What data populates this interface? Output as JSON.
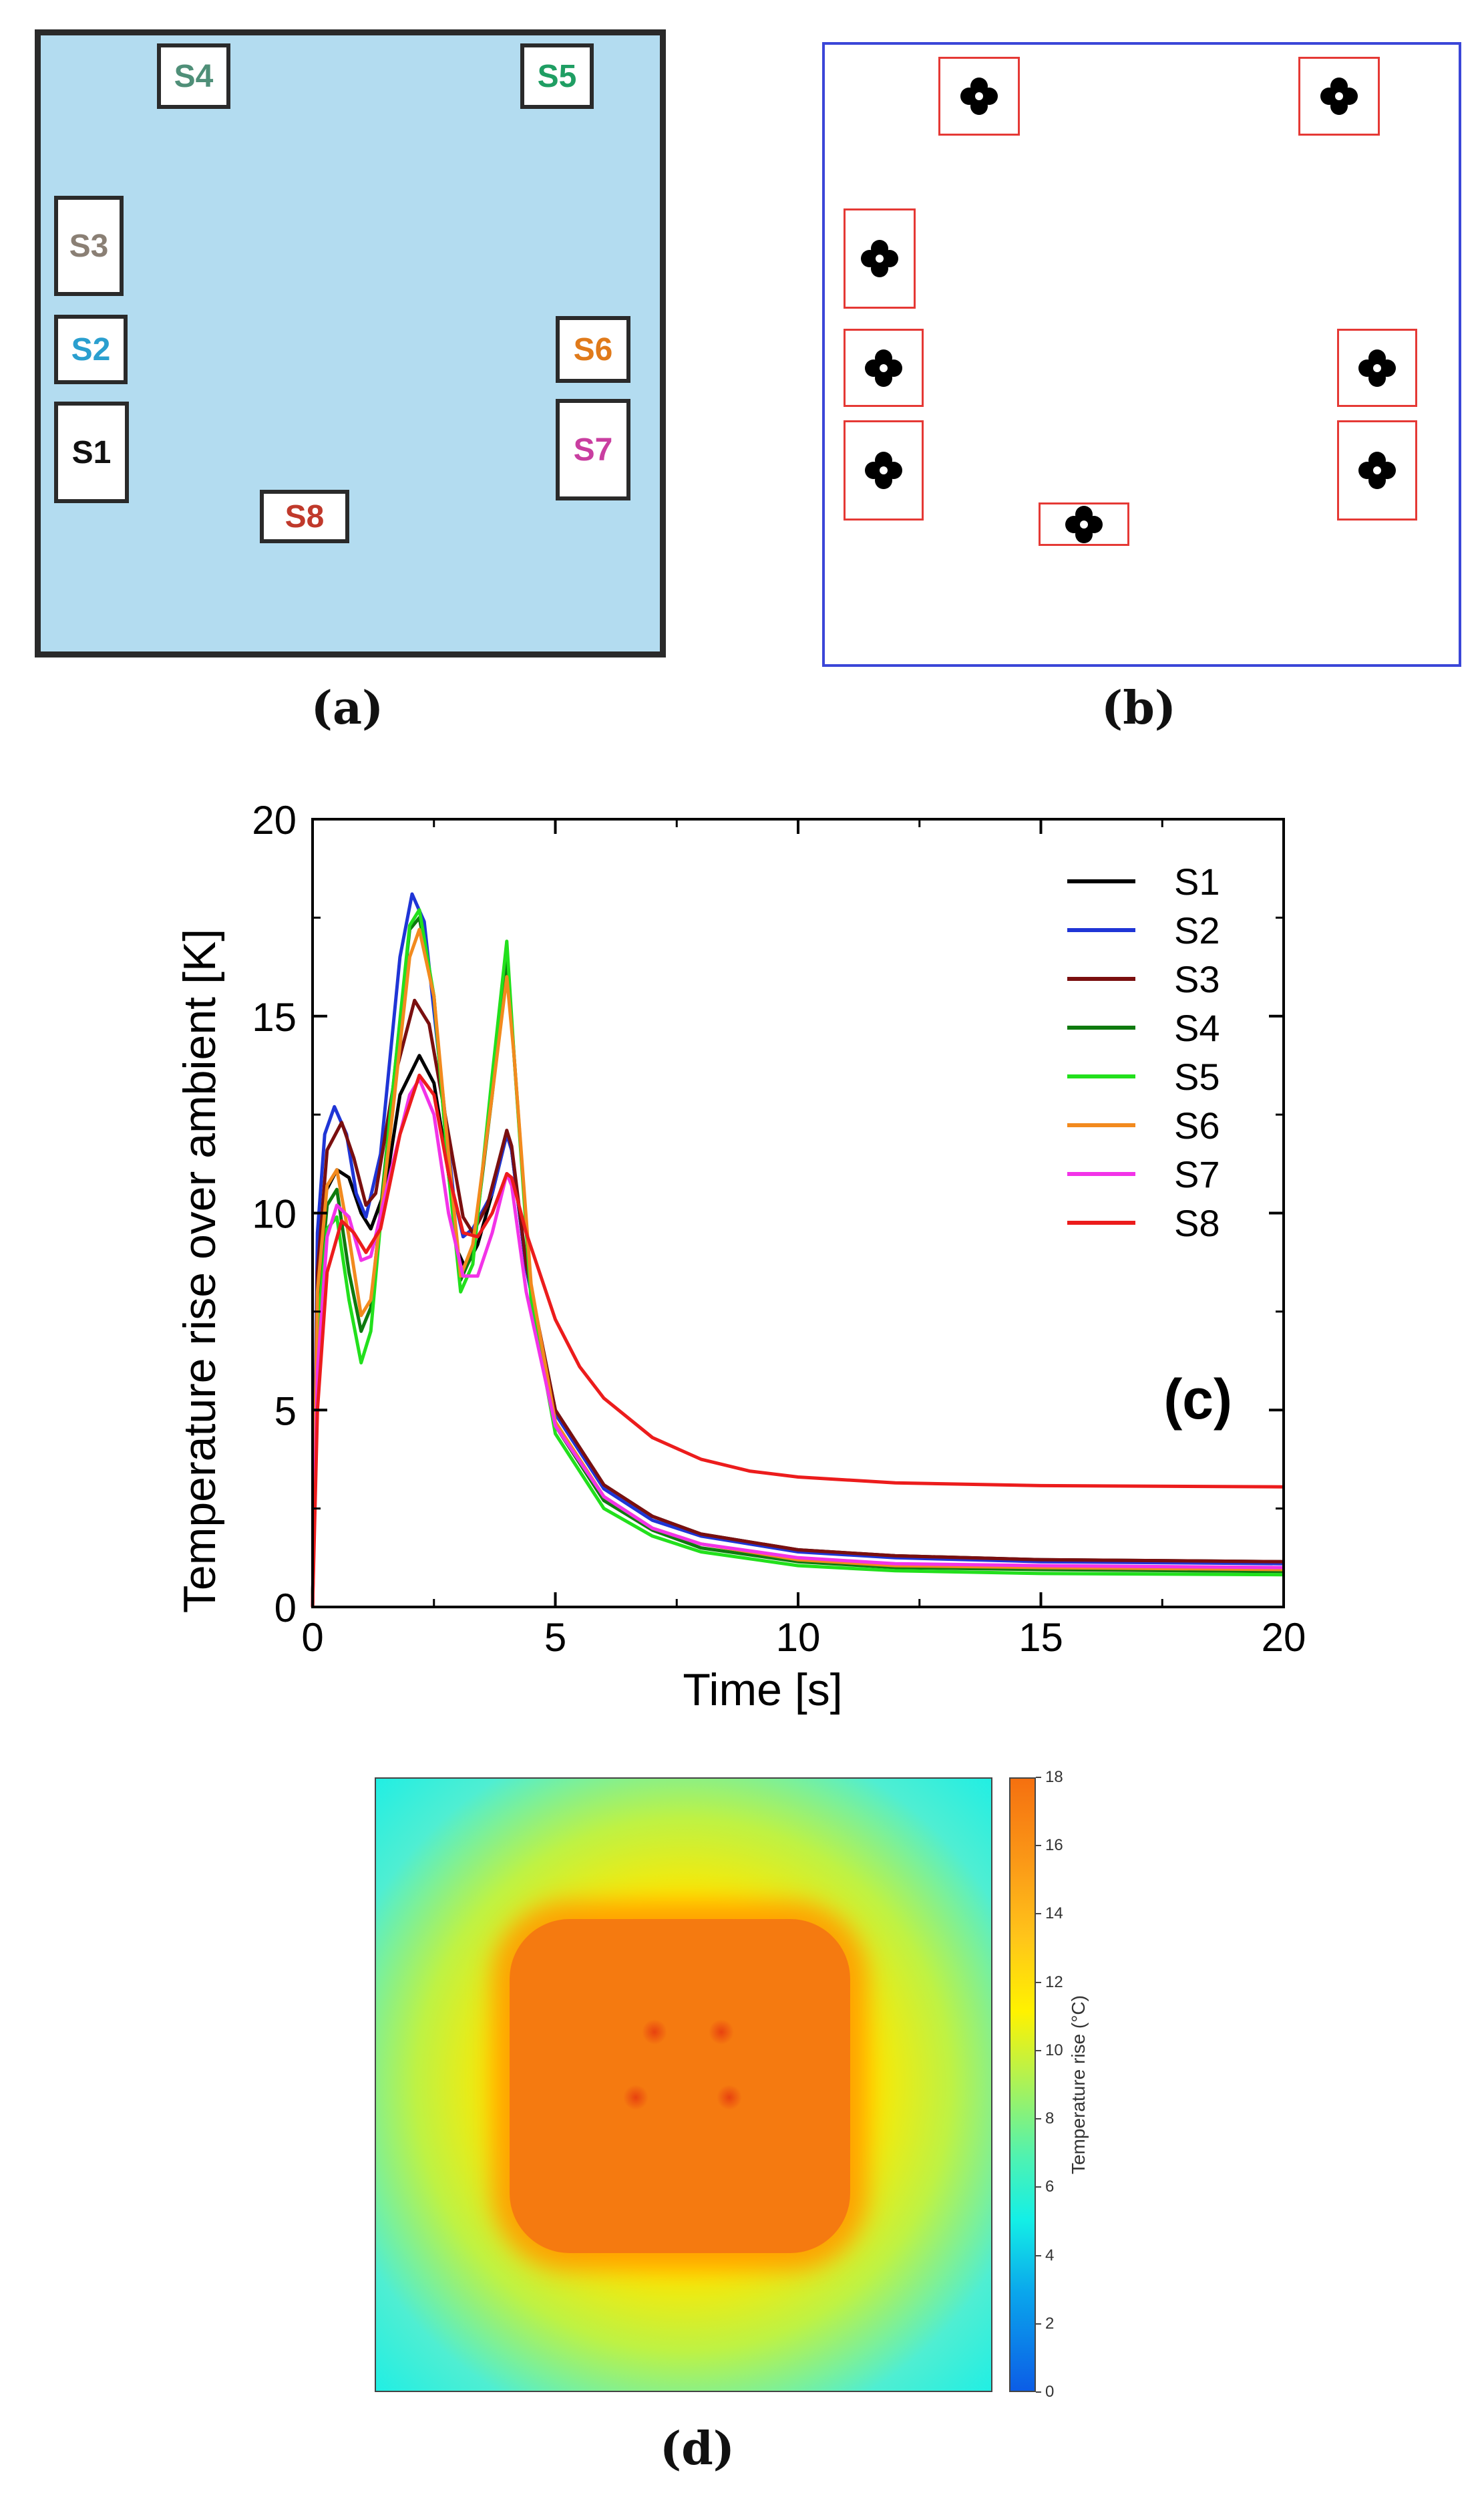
{
  "panel_a": {
    "label": "(a)",
    "sensors": [
      {
        "id": "S1",
        "color": "#111111"
      },
      {
        "id": "S2",
        "color": "#2a9fcf"
      },
      {
        "id": "S3",
        "color": "#8a7f74"
      },
      {
        "id": "S4",
        "color": "#4f8f78"
      },
      {
        "id": "S5",
        "color": "#1f9e63"
      },
      {
        "id": "S6",
        "color": "#e07a1a"
      },
      {
        "id": "S7",
        "color": "#c93ea0"
      },
      {
        "id": "S8",
        "color": "#c0392b"
      }
    ]
  },
  "panel_b": {
    "label": "(b)"
  },
  "panel_d": {
    "label": "(d)",
    "colorbar_title": "Temperature rise (°C)",
    "colorbar_ticks": [
      "0",
      "2",
      "4",
      "6",
      "8",
      "10",
      "12",
      "14",
      "16",
      "18"
    ]
  },
  "chart_data": {
    "type": "line",
    "panel_label": "(c)",
    "xlabel": "Time [s]",
    "ylabel": "Temperature rise over ambient [K]",
    "xlim": [
      0,
      20
    ],
    "ylim": [
      0,
      20
    ],
    "xticks": [
      0,
      5,
      10,
      15,
      20
    ],
    "yticks": [
      0,
      5,
      10,
      15,
      20
    ],
    "legend_position": "top-right",
    "series": [
      {
        "name": "S1",
        "color": "#000000",
        "points": [
          [
            0,
            0
          ],
          [
            0.1,
            8.5
          ],
          [
            0.25,
            10.5
          ],
          [
            0.5,
            11.1
          ],
          [
            0.75,
            10.9
          ],
          [
            1.0,
            10.0
          ],
          [
            1.2,
            9.6
          ],
          [
            1.5,
            10.6
          ],
          [
            1.8,
            13.0
          ],
          [
            2.2,
            14.0
          ],
          [
            2.5,
            13.3
          ],
          [
            2.8,
            11.0
          ],
          [
            3.0,
            9.0
          ],
          [
            3.15,
            8.6
          ],
          [
            3.4,
            9.2
          ],
          [
            3.7,
            10.5
          ],
          [
            4.0,
            12.0
          ],
          [
            4.1,
            11.6
          ],
          [
            4.4,
            8.6
          ],
          [
            5.0,
            5.0
          ],
          [
            6.0,
            3.1
          ],
          [
            7.0,
            2.3
          ],
          [
            8.0,
            1.85
          ],
          [
            10.0,
            1.45
          ],
          [
            12.0,
            1.3
          ],
          [
            15.0,
            1.2
          ],
          [
            20.0,
            1.15
          ]
        ]
      },
      {
        "name": "S2",
        "color": "#1f35d6",
        "points": [
          [
            0,
            0
          ],
          [
            0.1,
            9.5
          ],
          [
            0.25,
            12.0
          ],
          [
            0.45,
            12.7
          ],
          [
            0.7,
            12.0
          ],
          [
            0.9,
            10.5
          ],
          [
            1.1,
            9.9
          ],
          [
            1.4,
            11.5
          ],
          [
            1.8,
            16.5
          ],
          [
            2.05,
            18.1
          ],
          [
            2.3,
            17.4
          ],
          [
            2.6,
            14.0
          ],
          [
            2.9,
            10.5
          ],
          [
            3.1,
            9.4
          ],
          [
            3.3,
            9.6
          ],
          [
            3.7,
            10.5
          ],
          [
            4.0,
            12.0
          ],
          [
            4.1,
            11.6
          ],
          [
            4.4,
            8.6
          ],
          [
            5.0,
            4.9
          ],
          [
            6.0,
            3.0
          ],
          [
            7.0,
            2.2
          ],
          [
            8.0,
            1.8
          ],
          [
            10.0,
            1.4
          ],
          [
            12.0,
            1.25
          ],
          [
            15.0,
            1.15
          ],
          [
            20.0,
            1.1
          ]
        ]
      },
      {
        "name": "S3",
        "color": "#7a0f0f",
        "points": [
          [
            0,
            0
          ],
          [
            0.1,
            8.5
          ],
          [
            0.3,
            11.6
          ],
          [
            0.6,
            12.3
          ],
          [
            0.85,
            11.4
          ],
          [
            1.1,
            10.2
          ],
          [
            1.3,
            10.5
          ],
          [
            1.7,
            13.5
          ],
          [
            2.1,
            15.4
          ],
          [
            2.4,
            14.8
          ],
          [
            2.8,
            12.0
          ],
          [
            3.1,
            9.9
          ],
          [
            3.3,
            9.5
          ],
          [
            3.6,
            10.2
          ],
          [
            4.0,
            12.1
          ],
          [
            4.1,
            11.7
          ],
          [
            4.4,
            8.7
          ],
          [
            5.0,
            5.0
          ],
          [
            6.0,
            3.1
          ],
          [
            7.0,
            2.3
          ],
          [
            8.0,
            1.85
          ],
          [
            10.0,
            1.45
          ],
          [
            12.0,
            1.3
          ],
          [
            15.0,
            1.2
          ],
          [
            20.0,
            1.15
          ]
        ]
      },
      {
        "name": "S4",
        "color": "#0e7a0e",
        "points": [
          [
            0,
            0
          ],
          [
            0.1,
            7.5
          ],
          [
            0.3,
            10.2
          ],
          [
            0.5,
            10.6
          ],
          [
            0.75,
            8.5
          ],
          [
            1.0,
            7.0
          ],
          [
            1.2,
            7.6
          ],
          [
            1.6,
            12.5
          ],
          [
            2.0,
            17.2
          ],
          [
            2.2,
            17.5
          ],
          [
            2.5,
            15.5
          ],
          [
            2.8,
            11.0
          ],
          [
            3.05,
            8.3
          ],
          [
            3.3,
            9.0
          ],
          [
            3.7,
            13.0
          ],
          [
            4.0,
            16.5
          ],
          [
            4.15,
            14.0
          ],
          [
            4.5,
            8.0
          ],
          [
            5.0,
            4.6
          ],
          [
            6.0,
            2.7
          ],
          [
            7.0,
            1.95
          ],
          [
            8.0,
            1.5
          ],
          [
            10.0,
            1.15
          ],
          [
            12.0,
            1.0
          ],
          [
            15.0,
            0.95
          ],
          [
            20.0,
            0.9
          ]
        ]
      },
      {
        "name": "S5",
        "color": "#22e01c",
        "points": [
          [
            0,
            0
          ],
          [
            0.1,
            7.0
          ],
          [
            0.3,
            9.6
          ],
          [
            0.5,
            9.9
          ],
          [
            0.75,
            7.8
          ],
          [
            1.0,
            6.2
          ],
          [
            1.2,
            7.0
          ],
          [
            1.6,
            12.5
          ],
          [
            2.0,
            17.3
          ],
          [
            2.2,
            17.7
          ],
          [
            2.5,
            15.5
          ],
          [
            2.8,
            11.0
          ],
          [
            3.05,
            8.0
          ],
          [
            3.3,
            8.7
          ],
          [
            3.7,
            13.5
          ],
          [
            4.0,
            16.9
          ],
          [
            4.15,
            14.0
          ],
          [
            4.5,
            7.8
          ],
          [
            5.0,
            4.4
          ],
          [
            6.0,
            2.5
          ],
          [
            7.0,
            1.8
          ],
          [
            8.0,
            1.4
          ],
          [
            10.0,
            1.05
          ],
          [
            12.0,
            0.92
          ],
          [
            15.0,
            0.85
          ],
          [
            20.0,
            0.82
          ]
        ]
      },
      {
        "name": "S6",
        "color": "#f28a1e",
        "points": [
          [
            0,
            0
          ],
          [
            0.1,
            8.0
          ],
          [
            0.3,
            10.7
          ],
          [
            0.5,
            11.1
          ],
          [
            0.75,
            9.4
          ],
          [
            1.0,
            7.4
          ],
          [
            1.2,
            7.8
          ],
          [
            1.6,
            12.0
          ],
          [
            2.0,
            16.5
          ],
          [
            2.2,
            17.2
          ],
          [
            2.5,
            15.5
          ],
          [
            2.8,
            11.5
          ],
          [
            3.05,
            8.4
          ],
          [
            3.3,
            9.2
          ],
          [
            3.7,
            13.0
          ],
          [
            4.0,
            16.0
          ],
          [
            4.15,
            14.0
          ],
          [
            4.5,
            8.2
          ],
          [
            5.0,
            4.7
          ],
          [
            6.0,
            2.8
          ],
          [
            7.0,
            2.0
          ],
          [
            8.0,
            1.6
          ],
          [
            10.0,
            1.2
          ],
          [
            12.0,
            1.05
          ],
          [
            15.0,
            1.0
          ],
          [
            20.0,
            0.95
          ]
        ]
      },
      {
        "name": "S7",
        "color": "#f233e8",
        "points": [
          [
            0,
            0
          ],
          [
            0.1,
            6.0
          ],
          [
            0.3,
            9.4
          ],
          [
            0.5,
            10.2
          ],
          [
            0.75,
            9.9
          ],
          [
            1.0,
            8.8
          ],
          [
            1.2,
            8.9
          ],
          [
            1.6,
            11.0
          ],
          [
            2.0,
            13.0
          ],
          [
            2.2,
            13.4
          ],
          [
            2.5,
            12.5
          ],
          [
            2.8,
            10.0
          ],
          [
            3.1,
            8.4
          ],
          [
            3.4,
            8.4
          ],
          [
            3.7,
            9.5
          ],
          [
            4.0,
            11.0
          ],
          [
            4.1,
            10.7
          ],
          [
            4.4,
            8.0
          ],
          [
            5.0,
            4.6
          ],
          [
            6.0,
            2.8
          ],
          [
            7.0,
            2.0
          ],
          [
            8.0,
            1.6
          ],
          [
            10.0,
            1.25
          ],
          [
            12.0,
            1.1
          ],
          [
            15.0,
            1.05
          ],
          [
            20.0,
            1.0
          ]
        ]
      },
      {
        "name": "S8",
        "color": "#ec1c1c",
        "points": [
          [
            0,
            0
          ],
          [
            0.1,
            5.0
          ],
          [
            0.3,
            8.5
          ],
          [
            0.6,
            9.8
          ],
          [
            0.85,
            9.5
          ],
          [
            1.1,
            9.0
          ],
          [
            1.4,
            9.6
          ],
          [
            1.8,
            12.0
          ],
          [
            2.2,
            13.5
          ],
          [
            2.5,
            13.0
          ],
          [
            2.8,
            11.0
          ],
          [
            3.1,
            9.5
          ],
          [
            3.4,
            9.4
          ],
          [
            3.7,
            10.0
          ],
          [
            4.0,
            11.0
          ],
          [
            4.1,
            10.9
          ],
          [
            4.4,
            9.5
          ],
          [
            5.0,
            7.3
          ],
          [
            5.5,
            6.1
          ],
          [
            6.0,
            5.3
          ],
          [
            7.0,
            4.3
          ],
          [
            8.0,
            3.75
          ],
          [
            9.0,
            3.45
          ],
          [
            10.0,
            3.3
          ],
          [
            12.0,
            3.15
          ],
          [
            15.0,
            3.08
          ],
          [
            20.0,
            3.05
          ]
        ]
      }
    ]
  }
}
